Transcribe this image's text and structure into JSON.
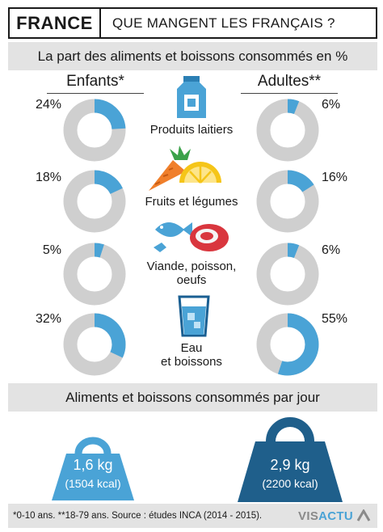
{
  "header": {
    "country": "FRANCE",
    "subtitle": "QUE MANGENT LES FRANÇAIS ?"
  },
  "section1_title": "La part des aliments et boissons consommés en %",
  "section2_title": "Aliments et boissons consommés par jour",
  "columns": {
    "children": "Enfants*",
    "adults": "Adultes**"
  },
  "colors": {
    "accent": "#4aa3d6",
    "ring_gray": "#cfcfcf",
    "bar_gray": "#e3e3e3",
    "dark": "#1a1a1a",
    "weight_light": "#4aa3d6",
    "weight_dark": "#1f5f8b"
  },
  "chart_data": {
    "type": "donut",
    "categories": [
      "Produits laitiers",
      "Fruits et légumes",
      "Viande, poisson, oeufs",
      "Eau et boissons"
    ],
    "series": [
      {
        "name": "Enfants*",
        "values": [
          24,
          18,
          5,
          32
        ]
      },
      {
        "name": "Adultes**",
        "values": [
          6,
          16,
          6,
          55
        ]
      }
    ],
    "unit": "%"
  },
  "labels": {
    "children_pct": [
      "24%",
      "18%",
      "5%",
      "32%"
    ],
    "adults_pct": [
      "6%",
      "16%",
      "6%",
      "55%"
    ],
    "cat1": "Produits laitiers",
    "cat2": "Fruits et légumes",
    "cat3a": "Viande, poisson,",
    "cat3b": "oeufs",
    "cat4a": "Eau",
    "cat4b": "et boissons"
  },
  "weights": {
    "children": {
      "value": "1,6 kg",
      "kcal": "(1504 kcal)"
    },
    "adults": {
      "value": "2,9 kg",
      "kcal": "(2200 kcal)"
    }
  },
  "footer": {
    "note": "*0-10 ans. **18-79 ans.  Source : études INCA (2014 - 2015).",
    "logo_a": "VIS",
    "logo_b": "ACTU"
  }
}
